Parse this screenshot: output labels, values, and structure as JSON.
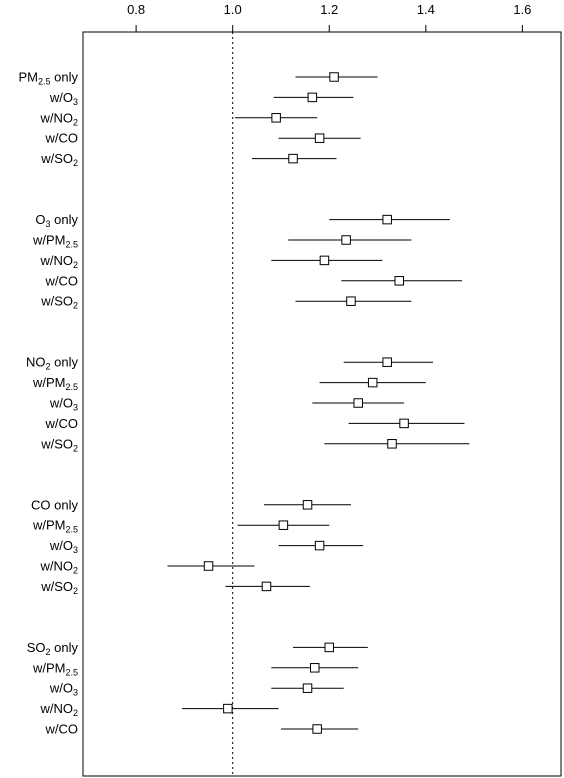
{
  "chart_data": {
    "type": "forest",
    "title": "",
    "xlabel": "",
    "ylabel": "",
    "xlim": [
      0.69,
      1.68
    ],
    "xticks": [
      {
        "value": 0.8,
        "label": "0.8"
      },
      {
        "value": 1.0,
        "label": "1.0"
      },
      {
        "value": 1.2,
        "label": "1.2"
      },
      {
        "value": 1.4,
        "label": "1.4"
      },
      {
        "value": 1.6,
        "label": "1.6"
      }
    ],
    "reference_line": 1.0,
    "grid": false,
    "groups": [
      {
        "rows": [
          {
            "label": [
              [
                "PM",
                ""
              ],
              [
                "2.5",
                "sub"
              ],
              [
                " only",
                ""
              ]
            ],
            "estimate": 1.21,
            "lower": 1.13,
            "upper": 1.3
          },
          {
            "label": [
              [
                "w/O",
                ""
              ],
              [
                "3",
                "sub"
              ]
            ],
            "estimate": 1.165,
            "lower": 1.085,
            "upper": 1.25
          },
          {
            "label": [
              [
                "w/NO",
                ""
              ],
              [
                "2",
                "sub"
              ]
            ],
            "estimate": 1.09,
            "lower": 1.005,
            "upper": 1.175
          },
          {
            "label": [
              [
                "w/CO",
                ""
              ]
            ],
            "estimate": 1.18,
            "lower": 1.095,
            "upper": 1.265
          },
          {
            "label": [
              [
                "w/SO",
                ""
              ],
              [
                "2",
                "sub"
              ]
            ],
            "estimate": 1.125,
            "lower": 1.04,
            "upper": 1.215
          }
        ]
      },
      {
        "rows": [
          {
            "label": [
              [
                "O",
                ""
              ],
              [
                "3",
                "sub"
              ],
              [
                " only",
                ""
              ]
            ],
            "estimate": 1.32,
            "lower": 1.2,
            "upper": 1.45
          },
          {
            "label": [
              [
                "w/PM",
                ""
              ],
              [
                "2.5",
                "sub"
              ]
            ],
            "estimate": 1.235,
            "lower": 1.115,
            "upper": 1.37
          },
          {
            "label": [
              [
                "w/NO",
                ""
              ],
              [
                "2",
                "sub"
              ]
            ],
            "estimate": 1.19,
            "lower": 1.08,
            "upper": 1.31
          },
          {
            "label": [
              [
                "w/CO",
                ""
              ]
            ],
            "estimate": 1.345,
            "lower": 1.225,
            "upper": 1.475
          },
          {
            "label": [
              [
                "w/SO",
                ""
              ],
              [
                "2",
                "sub"
              ]
            ],
            "estimate": 1.245,
            "lower": 1.13,
            "upper": 1.37
          }
        ]
      },
      {
        "rows": [
          {
            "label": [
              [
                "NO",
                ""
              ],
              [
                "2",
                "sub"
              ],
              [
                " only",
                ""
              ]
            ],
            "estimate": 1.32,
            "lower": 1.23,
            "upper": 1.415
          },
          {
            "label": [
              [
                "w/PM",
                ""
              ],
              [
                "2.5",
                "sub"
              ]
            ],
            "estimate": 1.29,
            "lower": 1.18,
            "upper": 1.4
          },
          {
            "label": [
              [
                "w/O",
                ""
              ],
              [
                "3",
                "sub"
              ]
            ],
            "estimate": 1.26,
            "lower": 1.165,
            "upper": 1.355
          },
          {
            "label": [
              [
                "w/CO",
                ""
              ]
            ],
            "estimate": 1.355,
            "lower": 1.24,
            "upper": 1.48
          },
          {
            "label": [
              [
                "w/SO",
                ""
              ],
              [
                "2",
                "sub"
              ]
            ],
            "estimate": 1.33,
            "lower": 1.19,
            "upper": 1.49
          }
        ]
      },
      {
        "rows": [
          {
            "label": [
              [
                "CO only",
                ""
              ]
            ],
            "estimate": 1.155,
            "lower": 1.065,
            "upper": 1.245
          },
          {
            "label": [
              [
                "w/PM",
                ""
              ],
              [
                "2.5",
                "sub"
              ]
            ],
            "estimate": 1.105,
            "lower": 1.01,
            "upper": 1.2
          },
          {
            "label": [
              [
                "w/O",
                ""
              ],
              [
                "3",
                "sub"
              ]
            ],
            "estimate": 1.18,
            "lower": 1.095,
            "upper": 1.27
          },
          {
            "label": [
              [
                "w/NO",
                ""
              ],
              [
                "2",
                "sub"
              ]
            ],
            "estimate": 0.95,
            "lower": 0.865,
            "upper": 1.045
          },
          {
            "label": [
              [
                "w/SO",
                ""
              ],
              [
                "2",
                "sub"
              ]
            ],
            "estimate": 1.07,
            "lower": 0.985,
            "upper": 1.16
          }
        ]
      },
      {
        "rows": [
          {
            "label": [
              [
                "SO",
                ""
              ],
              [
                "2",
                "sub"
              ],
              [
                " only",
                ""
              ]
            ],
            "estimate": 1.2,
            "lower": 1.125,
            "upper": 1.28
          },
          {
            "label": [
              [
                "w/PM",
                ""
              ],
              [
                "2.5",
                "sub"
              ]
            ],
            "estimate": 1.17,
            "lower": 1.08,
            "upper": 1.26
          },
          {
            "label": [
              [
                "w/O",
                ""
              ],
              [
                "3",
                "sub"
              ]
            ],
            "estimate": 1.155,
            "lower": 1.08,
            "upper": 1.23
          },
          {
            "label": [
              [
                "w/NO",
                ""
              ],
              [
                "2",
                "sub"
              ]
            ],
            "estimate": 0.99,
            "lower": 0.895,
            "upper": 1.095
          },
          {
            "label": [
              [
                "w/CO",
                ""
              ]
            ],
            "estimate": 1.175,
            "lower": 1.1,
            "upper": 1.26
          }
        ]
      }
    ]
  }
}
